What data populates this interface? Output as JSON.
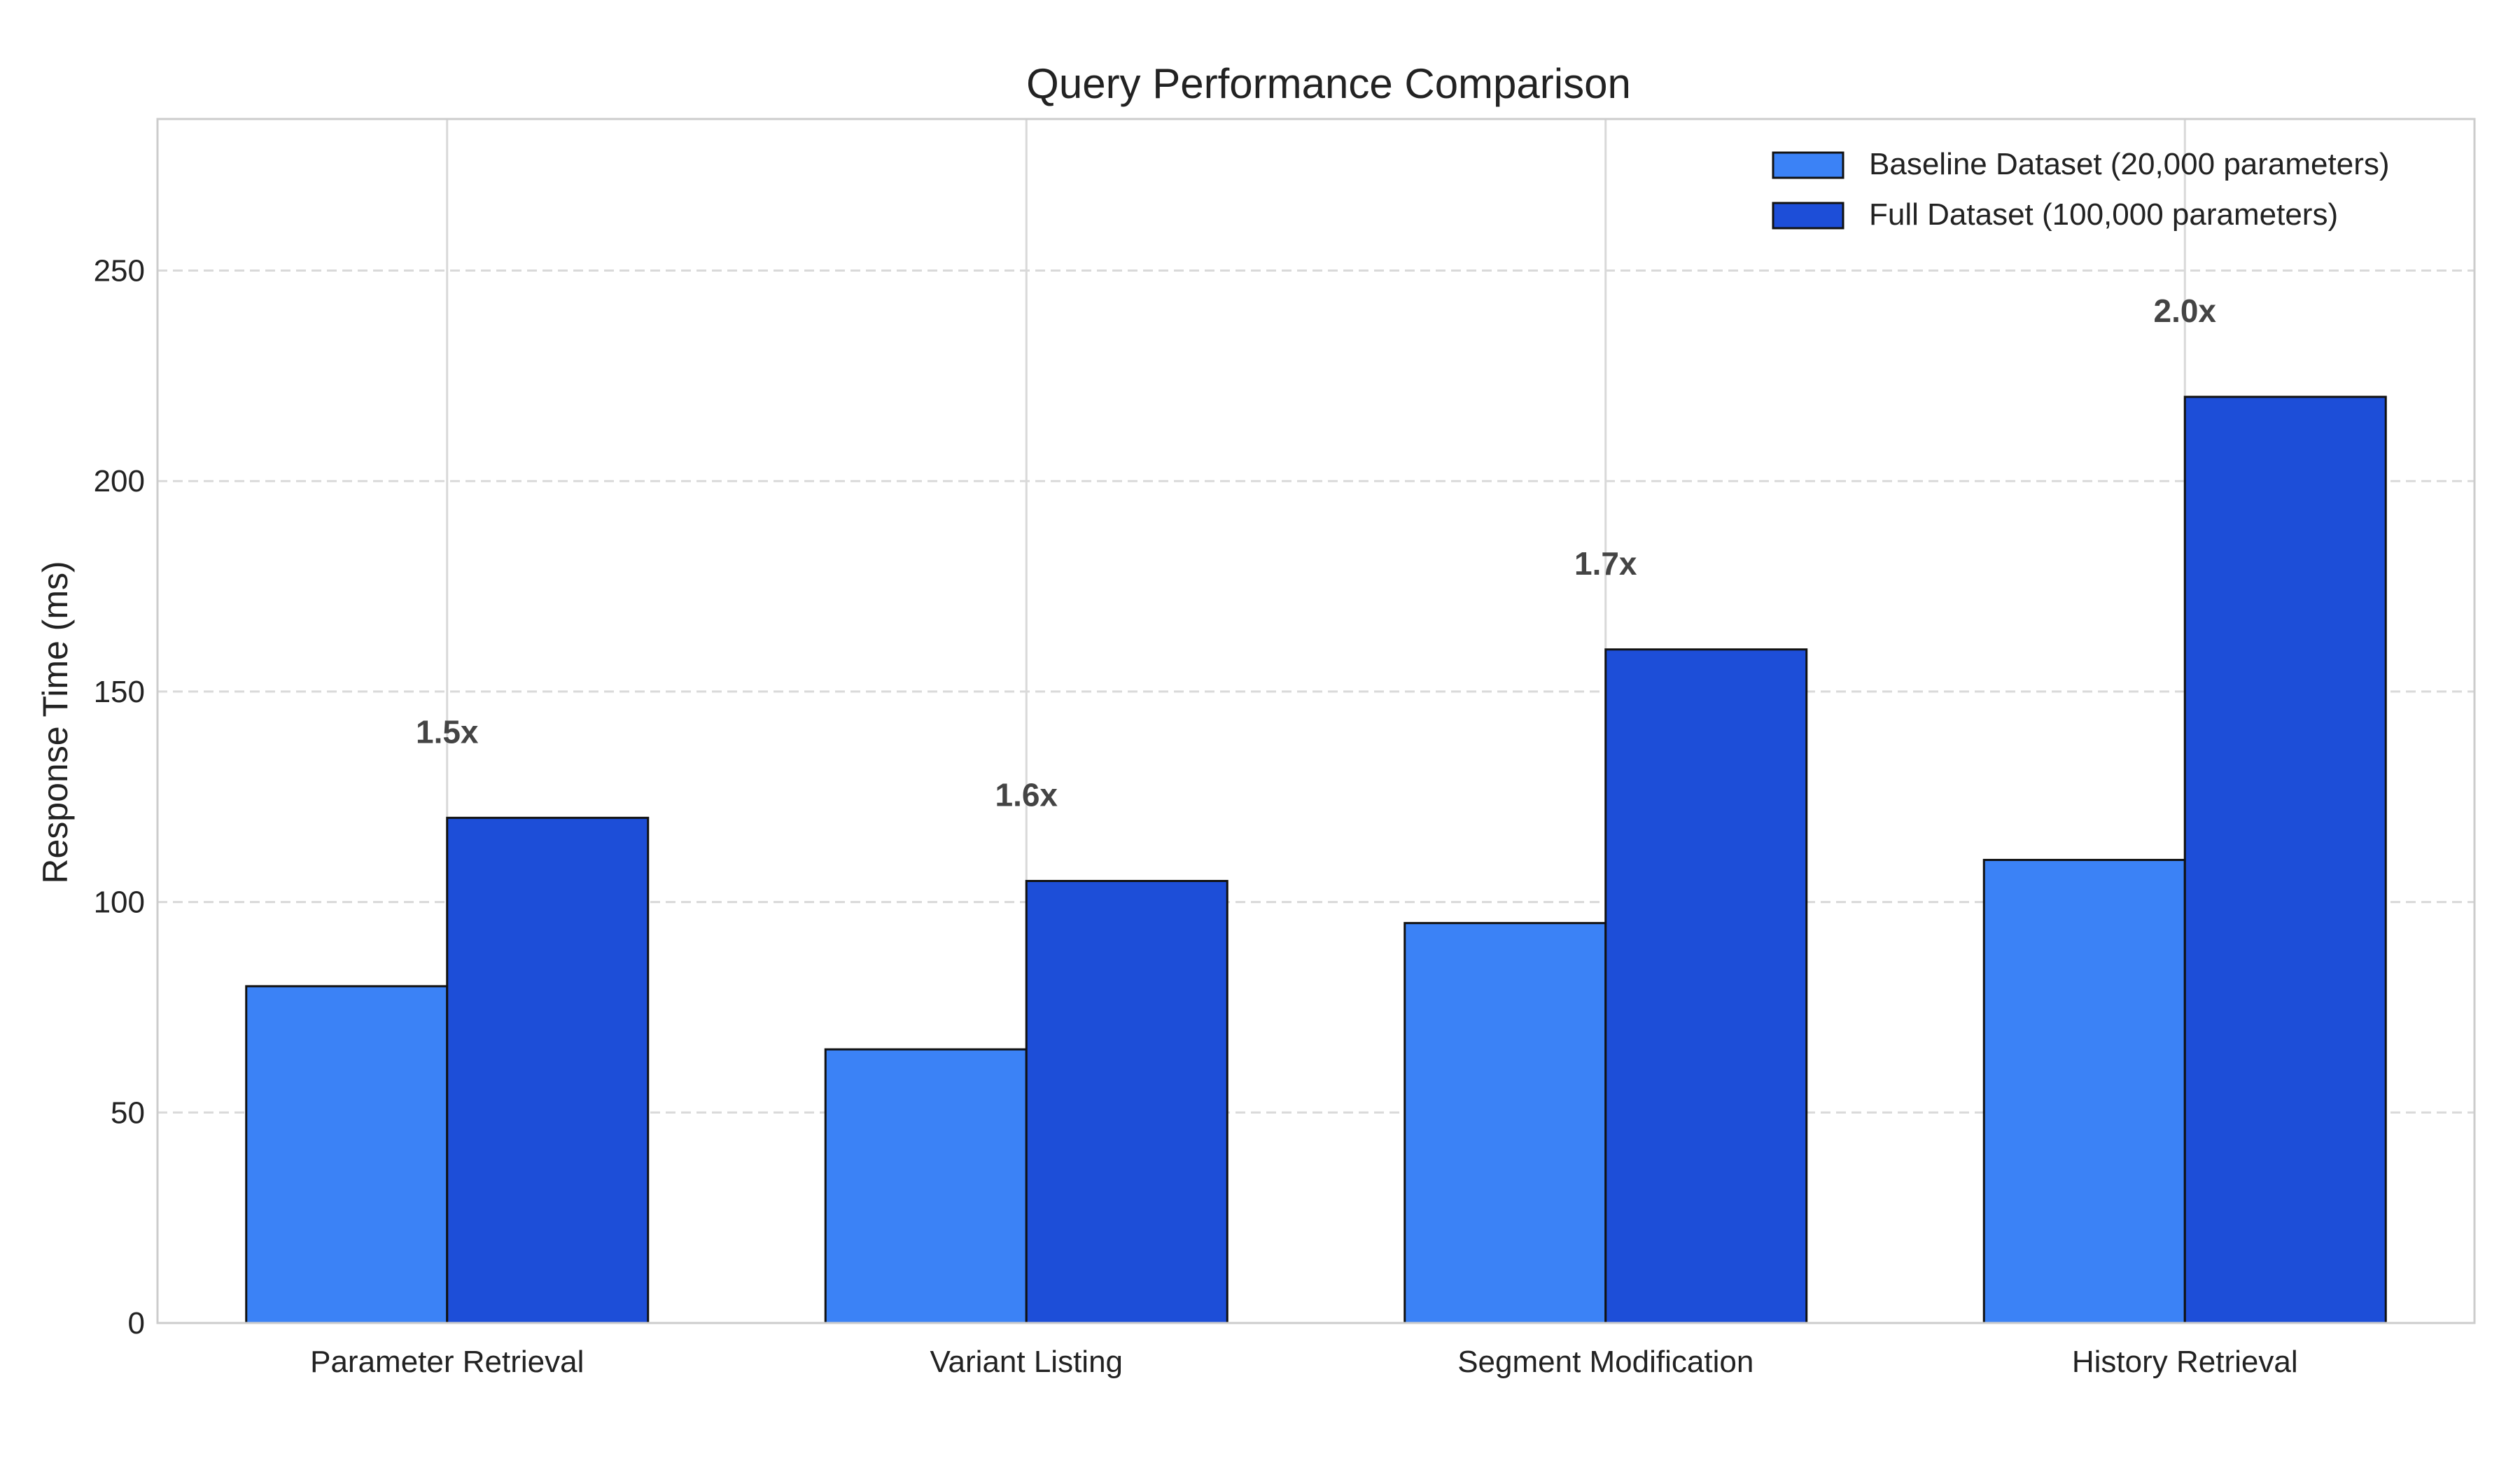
{
  "chart_data": {
    "type": "bar",
    "title": "Query Performance Comparison",
    "xlabel": "",
    "ylabel": "Response Time (ms)",
    "categories": [
      "Parameter Retrieval",
      "Variant Listing",
      "Segment Modification",
      "History Retrieval"
    ],
    "series": [
      {
        "name": "Baseline Dataset (20,000 parameters)",
        "values": [
          80,
          65,
          95,
          110
        ],
        "color": "#3b82f6"
      },
      {
        "name": "Full Dataset (100,000 parameters)",
        "values": [
          120,
          105,
          160,
          220
        ],
        "color": "#1d4ed8"
      }
    ],
    "annotations": [
      "1.5x",
      "1.6x",
      "1.7x",
      "2.0x"
    ],
    "ylim": [
      0,
      286
    ],
    "yticks": [
      0,
      50,
      100,
      150,
      200,
      250
    ],
    "grid": {
      "y": true,
      "x": true,
      "y_style": "dashed"
    },
    "legend": {
      "placement": "top-right"
    }
  }
}
